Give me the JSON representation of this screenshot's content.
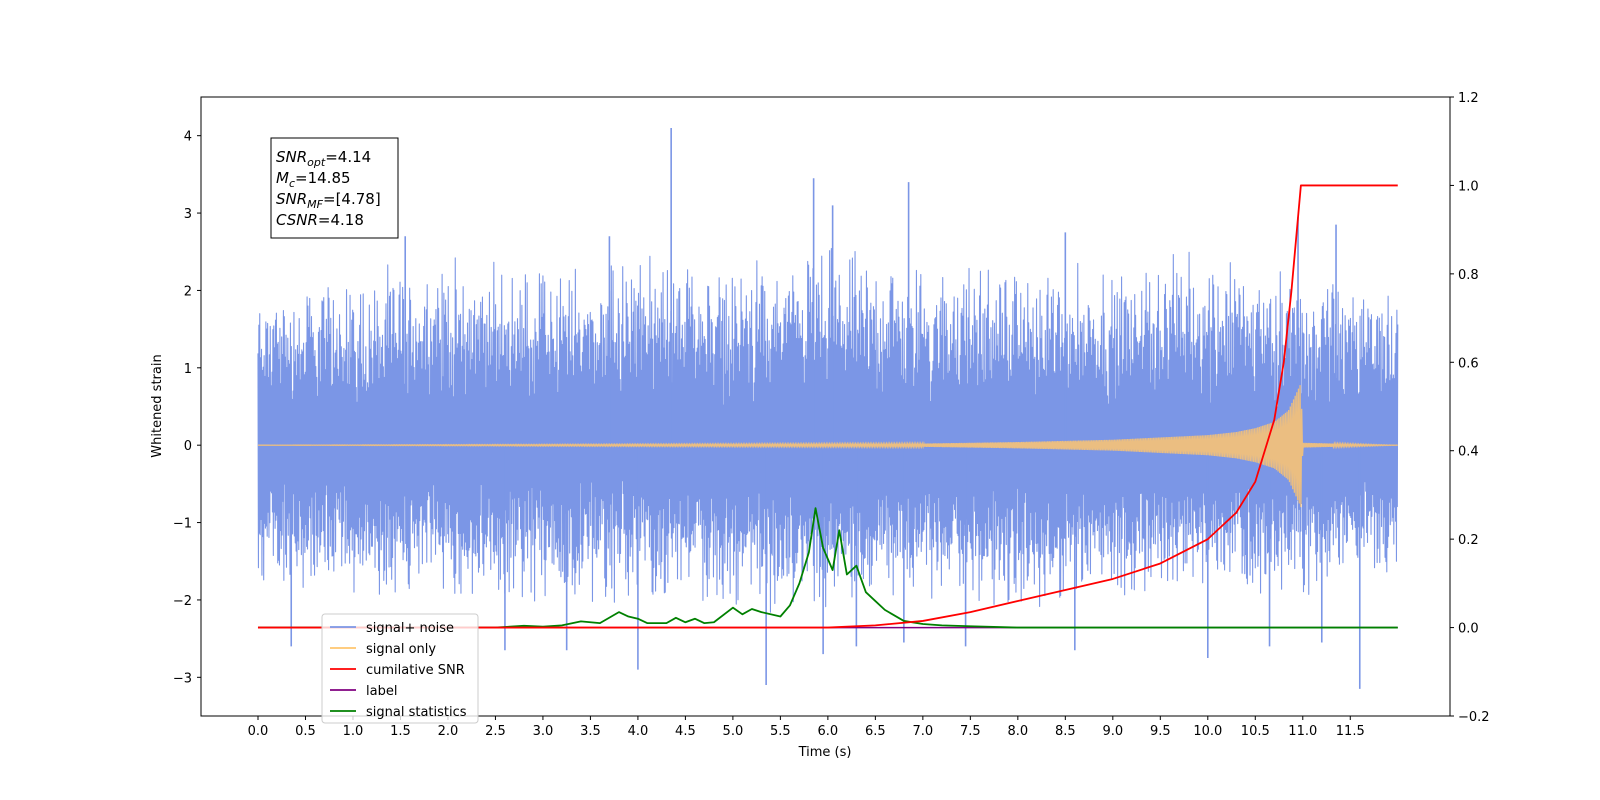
{
  "chart_data": {
    "type": "line",
    "xlabel": "Time (s)",
    "ylabel": "Whitened strain",
    "xlim": [
      -0.6,
      12.55
    ],
    "ylim": [
      -3.5,
      4.5
    ],
    "y2lim": [
      -0.2,
      1.2
    ],
    "xticks": [
      0.0,
      0.5,
      1.0,
      1.5,
      2.0,
      2.5,
      3.0,
      3.5,
      4.0,
      4.5,
      5.0,
      5.5,
      6.0,
      6.5,
      7.0,
      7.5,
      8.0,
      8.5,
      9.0,
      9.5,
      10.0,
      10.5,
      11.0,
      11.5
    ],
    "xtick_labels": [
      "0.0",
      "0.5",
      "1.0",
      "1.5",
      "2.0",
      "2.5",
      "3.0",
      "3.5",
      "4.0",
      "4.5",
      "5.0",
      "5.5",
      "6.0",
      "6.5",
      "7.0",
      "7.5",
      "8.0",
      "8.5",
      "9.0",
      "9.5",
      "10.0",
      "10.5",
      "11.0",
      "11.5"
    ],
    "yticks": [
      -3,
      -2,
      -1,
      0,
      1,
      2,
      3,
      4
    ],
    "ytick_labels": [
      "−3",
      "−2",
      "−1",
      "0",
      "1",
      "2",
      "3",
      "4"
    ],
    "y2ticks": [
      -0.2,
      0.0,
      0.2,
      0.4,
      0.6,
      0.8,
      1.0,
      1.2
    ],
    "y2tick_labels": [
      "−0.2",
      "0.0",
      "0.2",
      "0.4",
      "0.6",
      "0.8",
      "1.0",
      "1.2"
    ],
    "grid": false,
    "legend_position": "lower-left",
    "annotation": {
      "lines": [
        {
          "base": "SNR",
          "sub": "opt",
          "rest": "=4.14"
        },
        {
          "base": "M",
          "sub": "c",
          "rest": "=14.85"
        },
        {
          "base": "SNR",
          "sub": "MF",
          "rest": "=[4.78]"
        },
        {
          "base": "CSNR",
          "sub": "",
          "rest": "=4.18"
        }
      ]
    },
    "series": [
      {
        "name": "signal+ noise",
        "axis": "left",
        "color": "#7b96e6",
        "x_range": [
          0.0,
          12.0
        ],
        "envelope": {
          "x": [
            0,
            1,
            2,
            3,
            4,
            5,
            6,
            7,
            8,
            9,
            10,
            11,
            12
          ],
          "upper": [
            2.1,
            2.3,
            2.5,
            2.4,
            2.6,
            2.4,
            2.7,
            2.4,
            2.5,
            2.4,
            2.6,
            2.3,
            2.2
          ],
          "lower": [
            -1.9,
            -2.0,
            -2.1,
            -2.2,
            -2.1,
            -2.2,
            -2.2,
            -2.1,
            -2.2,
            -2.1,
            -2.1,
            -2.0,
            -1.8
          ]
        },
        "spikes": [
          [
            0.35,
            -2.6
          ],
          [
            1.55,
            2.7
          ],
          [
            2.6,
            -2.65
          ],
          [
            3.25,
            -2.65
          ],
          [
            3.7,
            2.7
          ],
          [
            4.0,
            -2.9
          ],
          [
            4.35,
            4.1
          ],
          [
            5.35,
            -3.1
          ],
          [
            5.85,
            3.45
          ],
          [
            5.95,
            -2.7
          ],
          [
            6.05,
            3.1
          ],
          [
            6.3,
            -2.6
          ],
          [
            6.8,
            -2.55
          ],
          [
            6.85,
            3.4
          ],
          [
            7.45,
            -2.6
          ],
          [
            8.5,
            2.75
          ],
          [
            8.6,
            -2.65
          ],
          [
            10.0,
            -2.75
          ],
          [
            10.65,
            -2.6
          ],
          [
            10.95,
            2.95
          ],
          [
            11.2,
            -2.55
          ],
          [
            11.35,
            2.85
          ],
          [
            11.6,
            -3.15
          ]
        ]
      },
      {
        "name": "signal only",
        "axis": "left",
        "color": "#ffc66e",
        "x": [
          0.0,
          7.0,
          8.0,
          9.0,
          9.5,
          10.0,
          10.3,
          10.5,
          10.7,
          10.85,
          10.98,
          11.0,
          12.0
        ],
        "amplitude": [
          0.0,
          0.02,
          0.04,
          0.07,
          0.1,
          0.13,
          0.17,
          0.22,
          0.3,
          0.45,
          0.8,
          0.03,
          0.0
        ]
      },
      {
        "name": "cumilative SNR",
        "axis": "right",
        "color": "#ff0000",
        "x": [
          0.0,
          6.0,
          6.5,
          7.0,
          7.5,
          8.0,
          8.5,
          9.0,
          9.5,
          10.0,
          10.3,
          10.5,
          10.7,
          10.8,
          10.88,
          10.98,
          11.5,
          12.0
        ],
        "y": [
          0.0,
          0.0,
          0.005,
          0.015,
          0.035,
          0.06,
          0.085,
          0.11,
          0.145,
          0.2,
          0.26,
          0.33,
          0.47,
          0.6,
          0.76,
          1.0,
          1.0,
          1.0
        ]
      },
      {
        "name": "label",
        "axis": "right",
        "color": "#800080",
        "x": [
          0.0,
          12.0
        ],
        "y": [
          0.0,
          0.0
        ]
      },
      {
        "name": "signal statistics",
        "axis": "right",
        "color": "#008000",
        "x": [
          0.0,
          2.5,
          2.8,
          3.0,
          3.2,
          3.4,
          3.6,
          3.8,
          3.9,
          4.0,
          4.1,
          4.3,
          4.4,
          4.5,
          4.6,
          4.7,
          4.8,
          5.0,
          5.1,
          5.2,
          5.3,
          5.5,
          5.6,
          5.7,
          5.8,
          5.87,
          5.95,
          6.05,
          6.12,
          6.2,
          6.3,
          6.4,
          6.5,
          6.6,
          6.8,
          7.0,
          7.2,
          7.5,
          8.0,
          12.0
        ],
        "y": [
          0.0,
          0.0,
          0.004,
          0.002,
          0.005,
          0.014,
          0.01,
          0.035,
          0.025,
          0.02,
          0.01,
          0.01,
          0.022,
          0.012,
          0.02,
          0.01,
          0.012,
          0.045,
          0.03,
          0.042,
          0.035,
          0.025,
          0.05,
          0.1,
          0.17,
          0.27,
          0.18,
          0.13,
          0.22,
          0.12,
          0.14,
          0.08,
          0.06,
          0.04,
          0.015,
          0.008,
          0.005,
          0.003,
          0.0,
          0.0
        ]
      }
    ]
  }
}
